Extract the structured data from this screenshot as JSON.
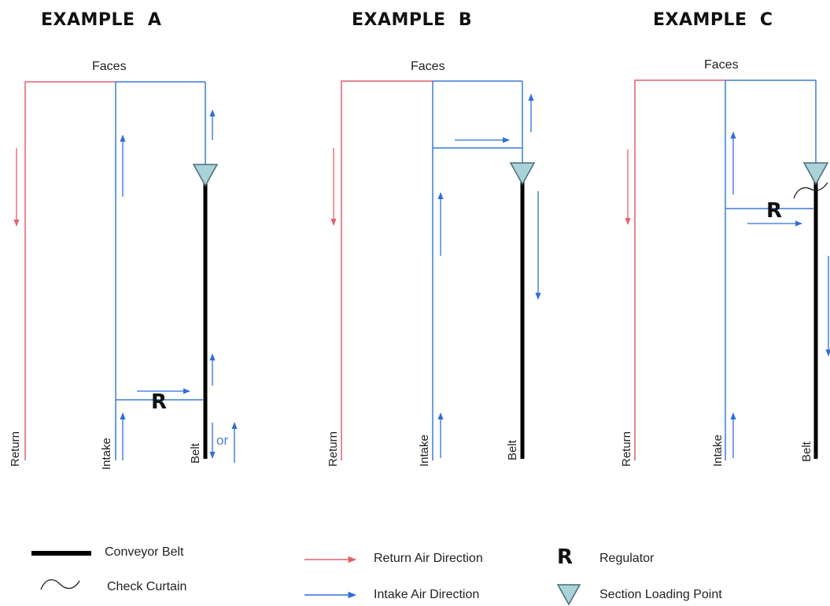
{
  "colors": {
    "return_air": "#e4606d",
    "intake_air": "#2f6fd6",
    "intake_line": "#3a7bd5",
    "belt": "#000000",
    "loading_point_fill": "#a9d3d8",
    "loading_point_stroke": "#4a6b78"
  },
  "examples": [
    {
      "title": "EXAMPLE  A",
      "faces_label": "Faces",
      "entry_labels": {
        "return": "Return",
        "intake": "Intake",
        "belt": "Belt"
      },
      "regulator_label": "R",
      "alternate_label": "or"
    },
    {
      "title": "EXAMPLE  B",
      "faces_label": "Faces",
      "entry_labels": {
        "return": "Return",
        "intake": "Intake",
        "belt": "Belt"
      }
    },
    {
      "title": "EXAMPLE  C",
      "faces_label": "Faces",
      "entry_labels": {
        "return": "Return",
        "intake": "Intake",
        "belt": "Belt"
      },
      "regulator_label": "R"
    }
  ],
  "legend": {
    "conveyor_belt": "Conveyor Belt",
    "check_curtain": "Check Curtain",
    "return_air_direction": "Return Air Direction",
    "intake_air_direction": "Intake Air Direction",
    "regulator_symbol": "R",
    "regulator": "Regulator",
    "section_loading_point": "Section Loading Point"
  }
}
